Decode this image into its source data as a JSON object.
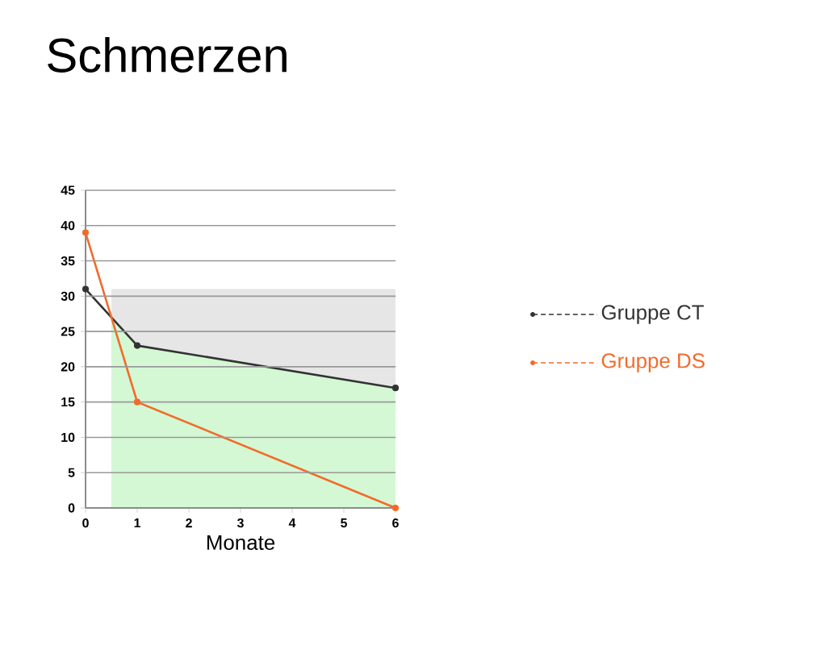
{
  "chart_data": {
    "type": "line",
    "title": "Schmerzen",
    "xlabel": "Monate",
    "x": [
      0,
      1,
      6
    ],
    "series": [
      {
        "type": "area",
        "marker": "none",
        "color": "#e6e6e6",
        "x": [
          0.5,
          1,
          6
        ],
        "values": [
          31,
          31,
          31
        ]
      },
      {
        "type": "area",
        "marker": "none",
        "color": "#d4f7d4",
        "x": [
          0.5,
          1,
          6
        ],
        "values": [
          27,
          23,
          17
        ]
      },
      {
        "name": "Gruppe CT",
        "color": "#333333",
        "values": [
          31,
          23,
          17
        ]
      },
      {
        "name": "Gruppe DS",
        "color": "#f26b2a",
        "values": [
          39,
          15,
          0
        ]
      }
    ],
    "xlim": [
      0,
      6
    ],
    "xticks": [
      0,
      1,
      2,
      3,
      4,
      5,
      6
    ],
    "ylim": [
      0,
      45
    ],
    "yticks": [
      0,
      5,
      10,
      15,
      20,
      25,
      30,
      35,
      40,
      45
    ],
    "grid": "y",
    "legend": "right",
    "marker": "circle",
    "line_style": "solid"
  }
}
